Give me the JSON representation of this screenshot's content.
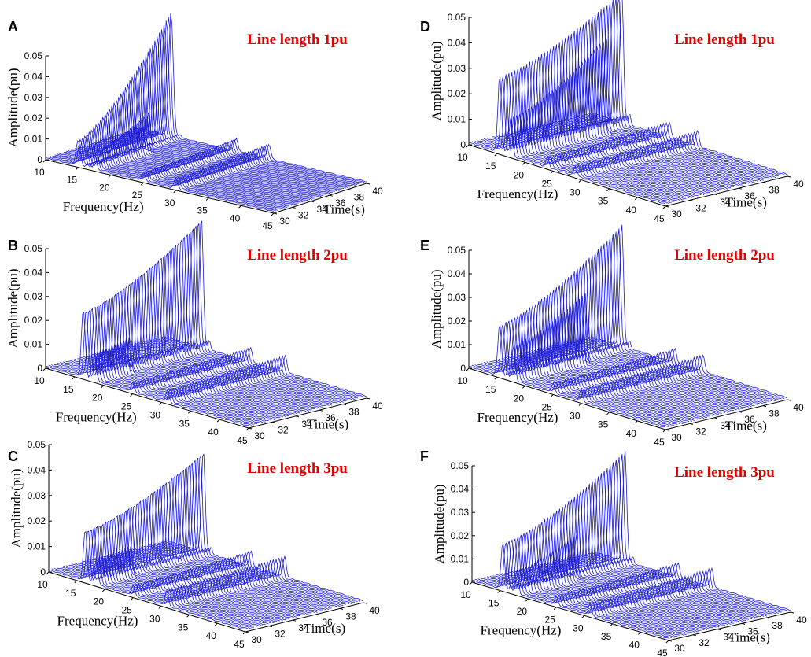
{
  "colors": {
    "trace": "#1a1ad6",
    "title": "#e00000",
    "axis": "#000000"
  },
  "chart_data": [
    {
      "panel": "A",
      "type": "waterfall-3d",
      "title": "Line length 1pu",
      "xlabel": "Frequency(Hz)",
      "ylabel": "Time(s)",
      "zlabel": "Amplitude(pu)",
      "xlim": [
        10,
        45
      ],
      "ylim": [
        30,
        40
      ],
      "zlim": [
        0,
        0.05
      ],
      "xticks": [
        "10",
        "15",
        "20",
        "25",
        "30",
        "35",
        "40",
        "45"
      ],
      "yticks": [
        "30",
        "32",
        "34",
        "36",
        "38",
        "40"
      ],
      "zticks": [
        "0",
        "0.01",
        "0.02",
        "0.03",
        "0.04",
        "0.05"
      ],
      "peaks": [
        {
          "freq": 15.0,
          "amp_start": 0.012,
          "amp_end": 0.06,
          "t_end": 40
        },
        {
          "freq": 17.5,
          "amp_start": 0.008,
          "amp_end": 0.02,
          "t_end": 36
        },
        {
          "freq": 25.0,
          "amp_start": 0.004,
          "amp_end": 0.006,
          "t_end": 40
        },
        {
          "freq": 30.0,
          "amp_start": 0.005,
          "amp_end": 0.007,
          "t_end": 40
        }
      ]
    },
    {
      "panel": "B",
      "type": "waterfall-3d",
      "title": "Line length 2pu",
      "xlabel": "Frequency(Hz)",
      "ylabel": "Time(s)",
      "zlabel": "Amplitude(pu)",
      "xlim": [
        10,
        45
      ],
      "ylim": [
        30,
        40
      ],
      "zlim": [
        0,
        0.05
      ],
      "xticks": [
        "10",
        "15",
        "20",
        "25",
        "30",
        "35",
        "40",
        "45"
      ],
      "yticks": [
        "30",
        "32",
        "34",
        "36",
        "38",
        "40"
      ],
      "zticks": [
        "0",
        "0.01",
        "0.02",
        "0.03",
        "0.04",
        "0.05"
      ],
      "peaks": [
        {
          "freq": 16.5,
          "amp_start": 0.028,
          "amp_end": 0.055,
          "t_end": 40
        },
        {
          "freq": 18.5,
          "amp_start": 0.012,
          "amp_end": 0.015,
          "t_end": 33
        },
        {
          "freq": 25.0,
          "amp_start": 0.004,
          "amp_end": 0.006,
          "t_end": 40
        },
        {
          "freq": 31.0,
          "amp_start": 0.005,
          "amp_end": 0.007,
          "t_end": 40
        }
      ]
    },
    {
      "panel": "C",
      "type": "waterfall-3d",
      "title": "Line length 3pu",
      "xlabel": "Frequency(Hz)",
      "ylabel": "Time(s)",
      "zlabel": "Amplitude(pu)",
      "xlim": [
        10,
        45
      ],
      "ylim": [
        30,
        40
      ],
      "zlim": [
        0,
        0.05
      ],
      "xticks": [
        "10",
        "15",
        "20",
        "25",
        "30",
        "35",
        "40",
        "45"
      ],
      "yticks": [
        "30",
        "32",
        "34",
        "36",
        "38",
        "40"
      ],
      "zticks": [
        "0",
        "0.01",
        "0.02",
        "0.03",
        "0.04",
        "0.05"
      ],
      "peaks": [
        {
          "freq": 16.5,
          "amp_start": 0.02,
          "amp_end": 0.04,
          "t_end": 40
        },
        {
          "freq": 18.5,
          "amp_start": 0.01,
          "amp_end": 0.012,
          "t_end": 33
        },
        {
          "freq": 25.0,
          "amp_start": 0.004,
          "amp_end": 0.006,
          "t_end": 40
        },
        {
          "freq": 31.0,
          "amp_start": 0.006,
          "amp_end": 0.008,
          "t_end": 40
        }
      ]
    },
    {
      "panel": "D",
      "type": "waterfall-3d",
      "title": "Line length 1pu",
      "xlabel": "Frequency(Hz)",
      "ylabel": "Time(s)",
      "zlabel": "Amplitude(pu)",
      "xlim": [
        10,
        45
      ],
      "ylim": [
        30,
        40
      ],
      "zlim": [
        0,
        0.05
      ],
      "xticks": [
        "10",
        "15",
        "20",
        "25",
        "30",
        "35",
        "40",
        "45"
      ],
      "yticks": [
        "30",
        "32",
        "34",
        "36",
        "38",
        "40"
      ],
      "zticks": [
        "0",
        "0.01",
        "0.02",
        "0.03",
        "0.04",
        "0.05"
      ],
      "peaks": [
        {
          "freq": 15.5,
          "amp_start": 0.03,
          "amp_end": 0.052,
          "t_end": 40
        },
        {
          "freq": 17.5,
          "amp_start": 0.015,
          "amp_end": 0.04,
          "t_end": 38
        },
        {
          "freq": 24.0,
          "amp_start": 0.004,
          "amp_end": 0.006,
          "t_end": 40
        },
        {
          "freq": 29.0,
          "amp_start": 0.004,
          "amp_end": 0.006,
          "t_end": 40
        }
      ]
    },
    {
      "panel": "E",
      "type": "waterfall-3d",
      "title": "Line length 2pu",
      "xlabel": "Frequency(Hz)",
      "ylabel": "Time(s)",
      "zlabel": "Amplitude(pu)",
      "xlim": [
        10,
        45
      ],
      "ylim": [
        30,
        40
      ],
      "zlim": [
        0,
        0.05
      ],
      "xticks": [
        "10",
        "15",
        "20",
        "25",
        "30",
        "35",
        "40",
        "45"
      ],
      "yticks": [
        "30",
        "32",
        "34",
        "36",
        "38",
        "40"
      ],
      "zticks": [
        "0",
        "0.01",
        "0.02",
        "0.03",
        "0.04",
        "0.05"
      ],
      "peaks": [
        {
          "freq": 15.5,
          "amp_start": 0.022,
          "amp_end": 0.052,
          "t_end": 40
        },
        {
          "freq": 18.0,
          "amp_start": 0.015,
          "amp_end": 0.03,
          "t_end": 36
        },
        {
          "freq": 25.0,
          "amp_start": 0.004,
          "amp_end": 0.006,
          "t_end": 40
        },
        {
          "freq": 30.0,
          "amp_start": 0.005,
          "amp_end": 0.007,
          "t_end": 40
        }
      ]
    },
    {
      "panel": "F",
      "type": "waterfall-3d",
      "title": "Line length 3pu",
      "xlabel": "Frequency(Hz)",
      "ylabel": "Time(s)",
      "zlabel": "Amplitude(pu)",
      "xlim": [
        10,
        45
      ],
      "ylim": [
        30,
        40
      ],
      "zlim": [
        0,
        0.05
      ],
      "xticks": [
        "10",
        "15",
        "20",
        "25",
        "30",
        "35",
        "40",
        "45"
      ],
      "yticks": [
        "30",
        "32",
        "34",
        "36",
        "38",
        "40"
      ],
      "zticks": [
        "0",
        "0.01",
        "0.02",
        "0.03",
        "0.04",
        "0.05"
      ],
      "peaks": [
        {
          "freq": 15.5,
          "amp_start": 0.02,
          "amp_end": 0.048,
          "t_end": 40
        },
        {
          "freq": 18.0,
          "amp_start": 0.01,
          "amp_end": 0.02,
          "t_end": 35
        },
        {
          "freq": 25.0,
          "amp_start": 0.004,
          "amp_end": 0.006,
          "t_end": 40
        },
        {
          "freq": 31.0,
          "amp_start": 0.005,
          "amp_end": 0.008,
          "t_end": 40
        }
      ]
    }
  ]
}
